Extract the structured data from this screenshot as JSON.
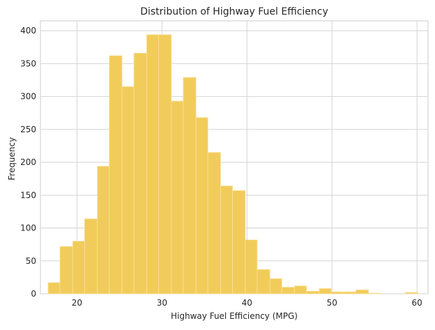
{
  "chart_data": {
    "type": "bar",
    "title": "Distribution of Highway Fuel Efficiency",
    "xlabel": "Highway Fuel Efficiency (MPG)",
    "ylabel": "Frequency",
    "xlim": [
      15.7,
      61.3
    ],
    "ylim": [
      0,
      415
    ],
    "xticks": [
      20,
      30,
      40,
      50,
      60
    ],
    "yticks": [
      0,
      50,
      100,
      150,
      200,
      250,
      300,
      350,
      400
    ],
    "grid": true,
    "bar_color": "#f2cc5a",
    "bins": [
      {
        "x0": 16.6,
        "x1": 18.0,
        "count": 17
      },
      {
        "x0": 18.0,
        "x1": 19.5,
        "count": 72
      },
      {
        "x0": 19.5,
        "x1": 20.9,
        "count": 80
      },
      {
        "x0": 20.9,
        "x1": 22.4,
        "count": 114
      },
      {
        "x0": 22.4,
        "x1": 23.8,
        "count": 194
      },
      {
        "x0": 23.8,
        "x1": 25.3,
        "count": 362
      },
      {
        "x0": 25.3,
        "x1": 26.7,
        "count": 315
      },
      {
        "x0": 26.7,
        "x1": 28.2,
        "count": 366
      },
      {
        "x0": 28.2,
        "x1": 29.6,
        "count": 394
      },
      {
        "x0": 29.6,
        "x1": 31.1,
        "count": 394
      },
      {
        "x0": 31.1,
        "x1": 32.5,
        "count": 293
      },
      {
        "x0": 32.5,
        "x1": 34.0,
        "count": 329
      },
      {
        "x0": 34.0,
        "x1": 35.4,
        "count": 268
      },
      {
        "x0": 35.4,
        "x1": 36.9,
        "count": 215
      },
      {
        "x0": 36.9,
        "x1": 38.3,
        "count": 164
      },
      {
        "x0": 38.3,
        "x1": 39.8,
        "count": 157
      },
      {
        "x0": 39.8,
        "x1": 41.2,
        "count": 82
      },
      {
        "x0": 41.2,
        "x1": 42.7,
        "count": 37
      },
      {
        "x0": 42.7,
        "x1": 44.1,
        "count": 23
      },
      {
        "x0": 44.1,
        "x1": 45.6,
        "count": 10
      },
      {
        "x0": 45.6,
        "x1": 47.0,
        "count": 12
      },
      {
        "x0": 47.0,
        "x1": 48.5,
        "count": 4
      },
      {
        "x0": 48.5,
        "x1": 49.9,
        "count": 8
      },
      {
        "x0": 49.9,
        "x1": 51.4,
        "count": 3
      },
      {
        "x0": 51.4,
        "x1": 52.8,
        "count": 3
      },
      {
        "x0": 52.8,
        "x1": 54.3,
        "count": 6
      },
      {
        "x0": 54.3,
        "x1": 55.7,
        "count": 1
      },
      {
        "x0": 55.7,
        "x1": 57.2,
        "count": 0
      },
      {
        "x0": 57.2,
        "x1": 58.6,
        "count": 0
      },
      {
        "x0": 58.6,
        "x1": 60.1,
        "count": 2
      }
    ]
  }
}
